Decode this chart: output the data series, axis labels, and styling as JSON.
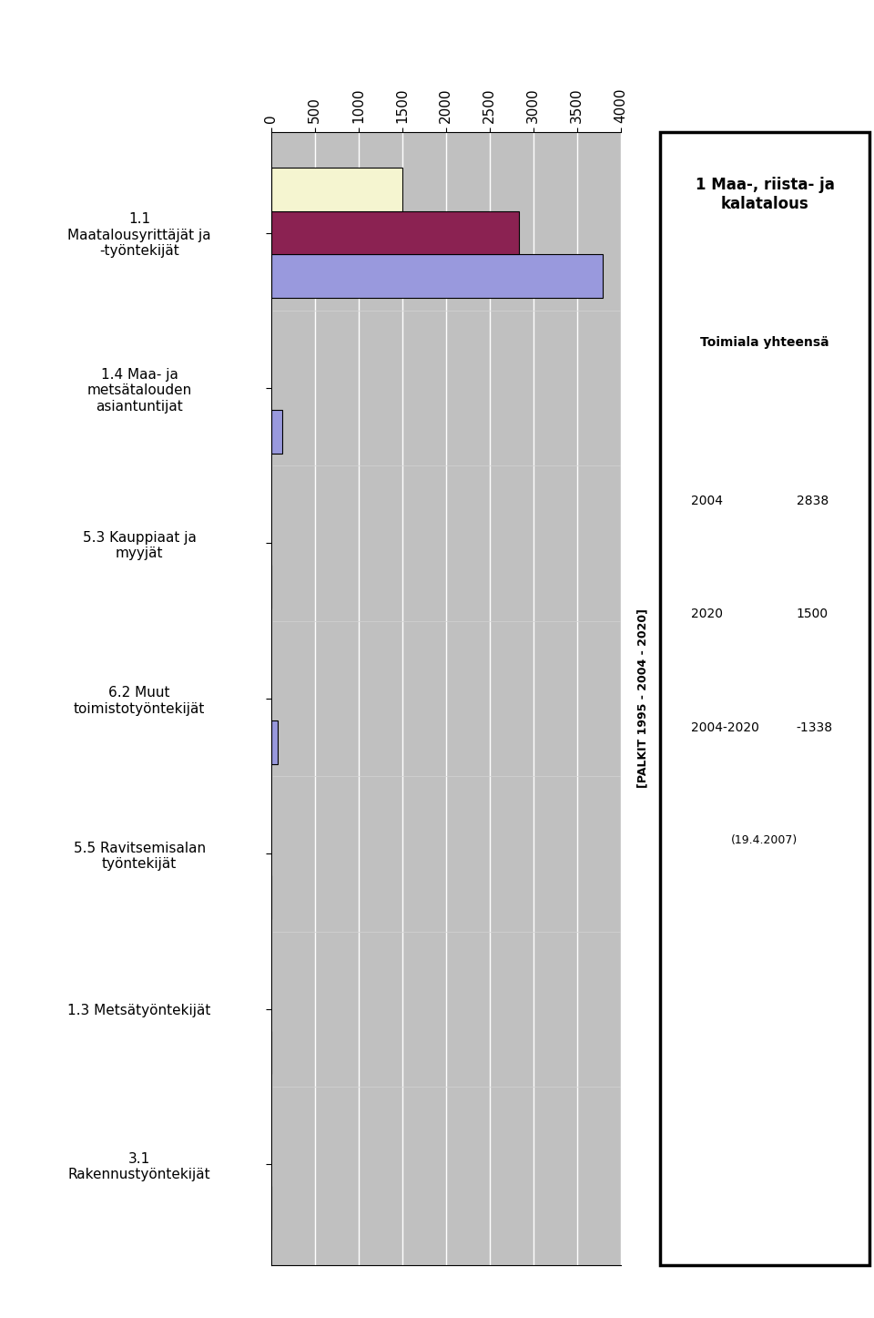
{
  "title_main": "1 Maa-, riista- ja kalatalous",
  "title_sub": "Toimiala yhteensä",
  "year1_label": "2004",
  "year1_val": "2838",
  "year2_label": "2020",
  "year2_val": "1500",
  "year3_label": "2004-2020",
  "year3_val": "-1338",
  "date": "(19.4.2007)",
  "legend_label": "[PALKIT 1995 - 2004 - 2020]",
  "categories": [
    "1.1\nMaatalousyrittäjät ja\n-työntekijät",
    "1.4 Maa- ja\nmetsätalouden\nasiantuntijat",
    "5.3 Kauppiaat ja\nmyyjät",
    "6.2 Muut\ntoimistotyöntekijät",
    "5.5 Ravitsemisalan\ntyöntekijät",
    "1.3 Metsätyöntekijät",
    "3.1\nRakennustyöntekijät"
  ],
  "values_1995": [
    3800,
    130,
    5,
    80,
    5,
    5,
    5
  ],
  "values_2004": [
    2838,
    0,
    0,
    0,
    0,
    0,
    0
  ],
  "values_2020": [
    1500,
    0,
    0,
    0,
    0,
    0,
    0
  ],
  "bar_color_1995": "#9999dd",
  "bar_color_2004": "#8b2252",
  "bar_color_2020": "#f5f5d0",
  "xlim": [
    0,
    4000
  ],
  "xticks": [
    0,
    500,
    1000,
    1500,
    2000,
    2500,
    3000,
    3500,
    4000
  ],
  "bar_height": 0.28,
  "background_color": "#c0c0c0"
}
